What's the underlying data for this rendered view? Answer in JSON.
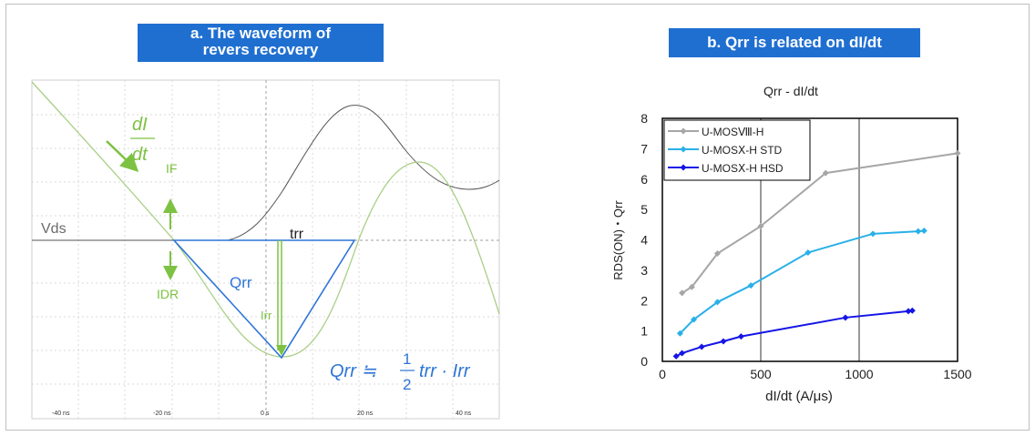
{
  "panel_a": {
    "banner_line1": "a.   The waveform of",
    "banner_line2": "revers recovery",
    "label_vds": "Vds",
    "label_trr": "trr",
    "label_qrr": "Qrr",
    "label_if": "IF",
    "label_idr": "IDR",
    "label_irr": "Irr",
    "didt_num": "dI",
    "didt_den": "dt",
    "formula_lhs": "Qrr ≒",
    "formula_num": "1",
    "formula_den": "2",
    "formula_rhs": "trr · Irr",
    "time_ticks": [
      "-40 ns",
      "-20 ns",
      "0 s",
      "20 ns",
      "40 ns"
    ],
    "colors": {
      "vds": "#555555",
      "current": "#a9cf86",
      "triangle": "#2e75d6",
      "arrows": "#7dc242"
    }
  },
  "panel_b": {
    "banner": "b. Qrr is related on dI/dt"
  },
  "chart_data": {
    "type": "line",
    "title": "Qrr - dI/dt",
    "xlabel": "dI/dt (A/μs)",
    "ylabel": "RDS(ON)・Qrr",
    "xlim": [
      0,
      1500
    ],
    "ylim": [
      0,
      8
    ],
    "x_ticks": [
      "0",
      "500",
      "1000",
      "1500"
    ],
    "y_ticks": [
      "0",
      "1",
      "2",
      "3",
      "4",
      "5",
      "6",
      "7",
      "8"
    ],
    "grid": true,
    "legend_position": "top-left",
    "series": [
      {
        "name": "U-MOSⅧ-H",
        "color": "#a6a6a6",
        "x": [
          100,
          150,
          280,
          500,
          830,
          1500
        ],
        "y": [
          2.25,
          2.45,
          3.55,
          4.45,
          6.2,
          6.85
        ]
      },
      {
        "name": "U-MOSⅩ-H STD",
        "color": "#29b0e8",
        "x": [
          90,
          160,
          280,
          450,
          740,
          1070,
          1300,
          1330
        ],
        "y": [
          0.92,
          1.38,
          1.95,
          2.5,
          3.58,
          4.2,
          4.28,
          4.3
        ]
      },
      {
        "name": "U-MOSⅩ-H HSD",
        "color": "#1515e6",
        "x": [
          70,
          100,
          200,
          310,
          400,
          930,
          1250,
          1270
        ],
        "y": [
          0.17,
          0.27,
          0.48,
          0.66,
          0.82,
          1.44,
          1.65,
          1.67
        ]
      }
    ]
  }
}
